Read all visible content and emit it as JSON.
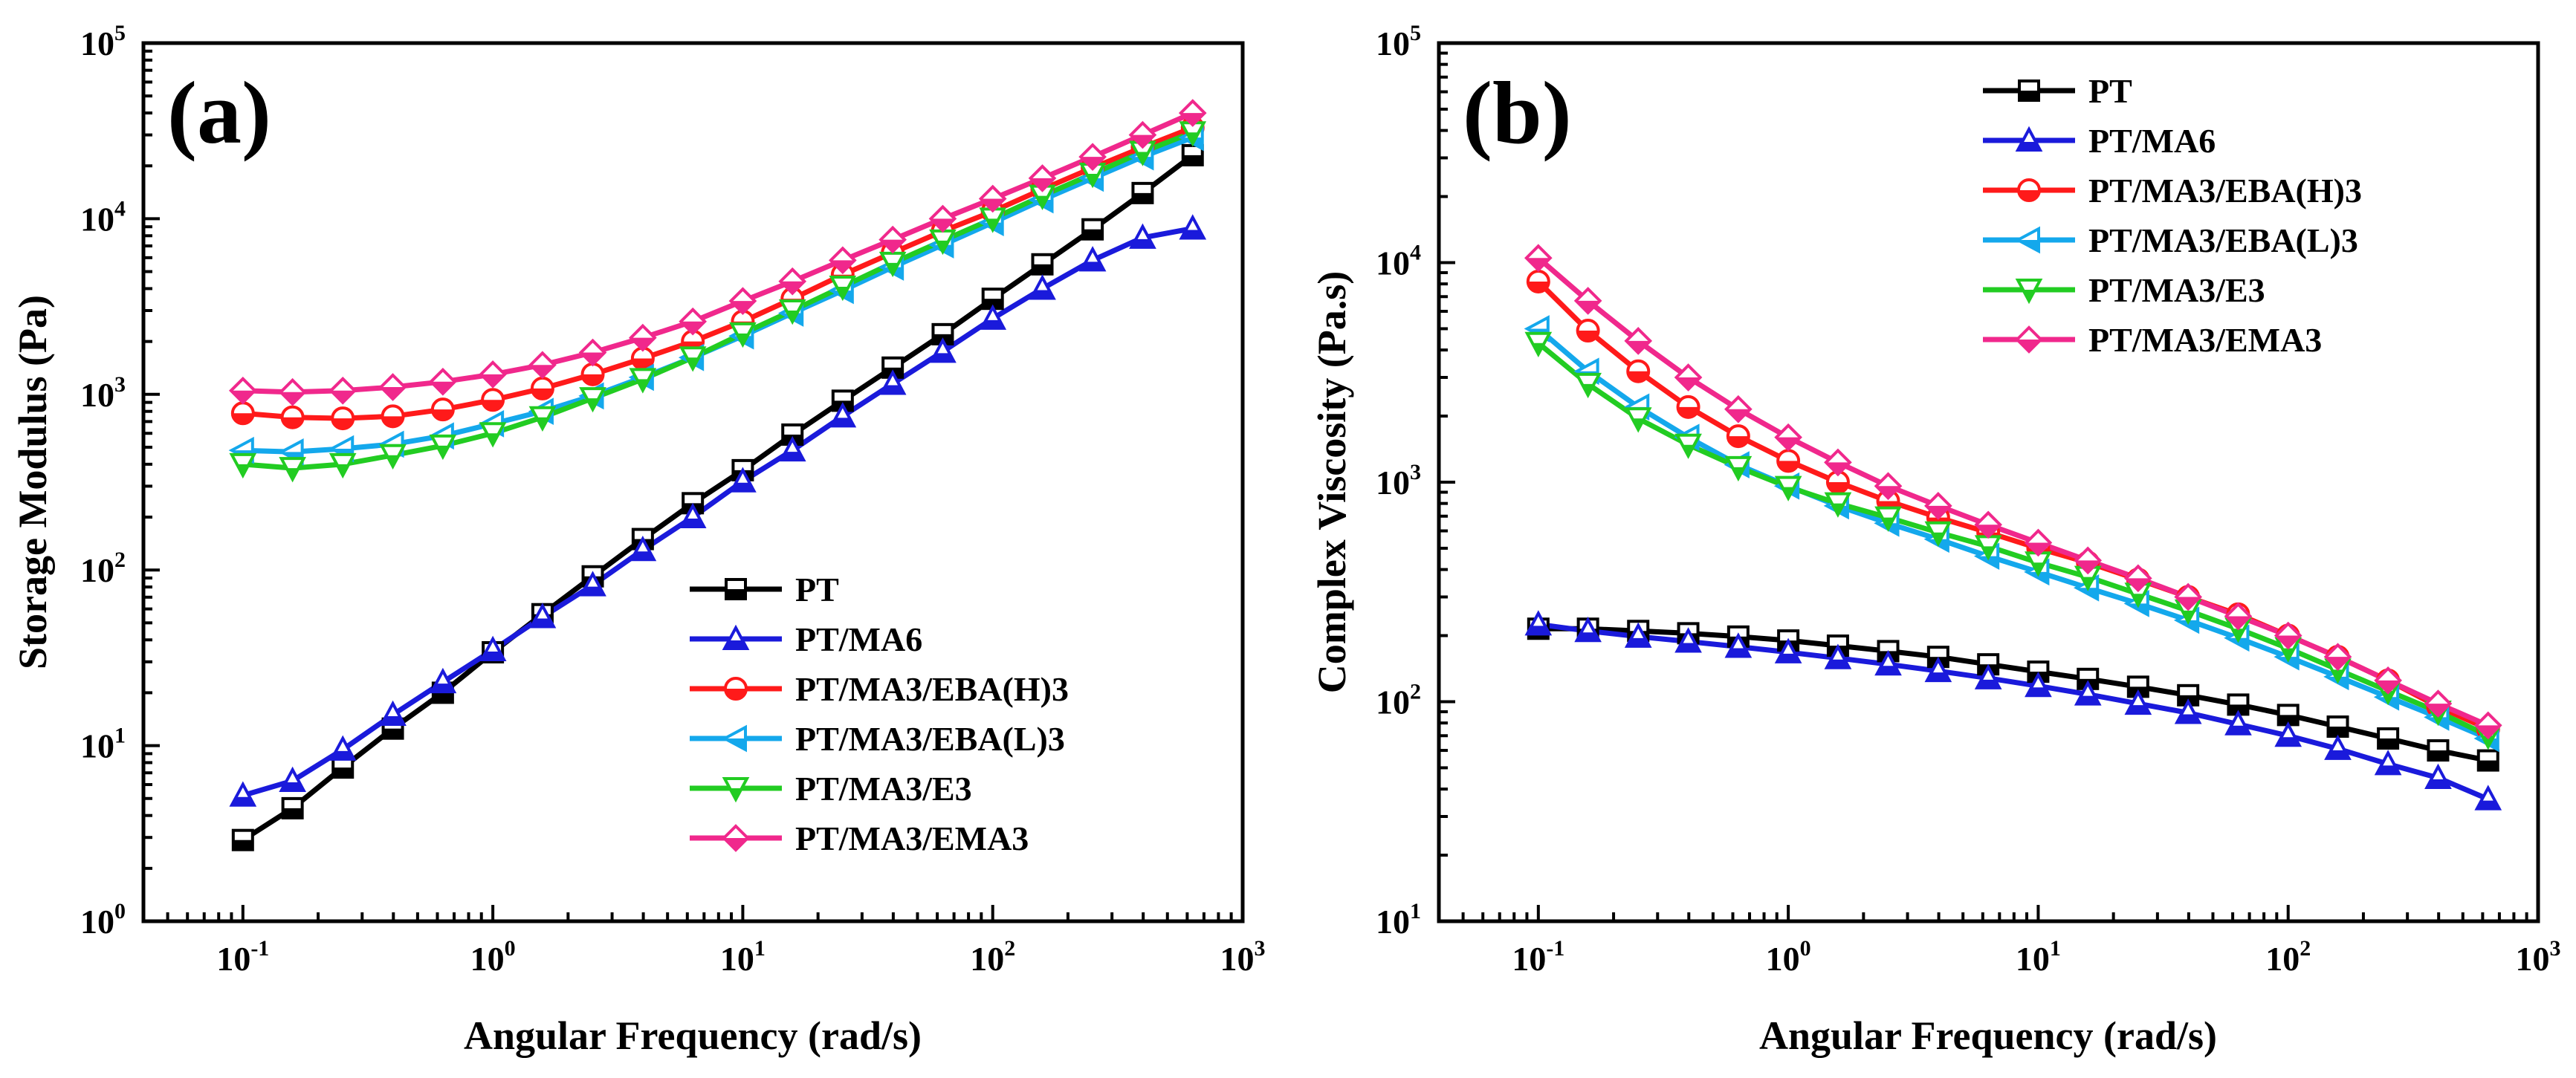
{
  "chart_data": [
    {
      "type": "line",
      "panel_label": "(a)",
      "xlabel": "Angular Frequency (rad/s)",
      "ylabel": "Storage Modulus (Pa)",
      "xscale": "log",
      "yscale": "log",
      "xlim": [
        0.04,
        1000
      ],
      "ylim": [
        1,
        100000
      ],
      "xticks": [
        {
          "base": "10",
          "exp": "-1"
        },
        {
          "base": "10",
          "exp": "0"
        },
        {
          "base": "10",
          "exp": "1"
        },
        {
          "base": "10",
          "exp": "2"
        },
        {
          "base": "10",
          "exp": "3"
        }
      ],
      "yticks": [
        {
          "base": "10",
          "exp": "0"
        },
        {
          "base": "10",
          "exp": "1"
        },
        {
          "base": "10",
          "exp": "2"
        },
        {
          "base": "10",
          "exp": "3"
        },
        {
          "base": "10",
          "exp": "4"
        },
        {
          "base": "10",
          "exp": "5"
        }
      ],
      "legend_position": "bottom-right",
      "x": [
        0.1,
        0.158,
        0.251,
        0.398,
        0.631,
        1,
        1.58,
        2.51,
        3.98,
        6.31,
        10,
        15.8,
        25.1,
        39.8,
        63.1,
        100,
        158,
        251,
        398,
        631
      ],
      "series": [
        {
          "name": "PT",
          "color": "#000000",
          "marker": "square",
          "values": [
            2.9,
            4.4,
            7.5,
            12.5,
            20,
            34,
            56,
            92,
            150,
            240,
            370,
            590,
            920,
            1420,
            2200,
            3500,
            5500,
            8700,
            14000,
            23000
          ]
        },
        {
          "name": "PT/MA6",
          "color": "#1a1adb",
          "marker": "triangle-up",
          "values": [
            5.2,
            6.3,
            9.5,
            15,
            23,
            35,
            54,
            82,
            130,
            200,
            320,
            480,
            750,
            1150,
            1750,
            2700,
            4000,
            5800,
            7800,
            8800
          ]
        },
        {
          "name": "PT/MA3/EBA(H)3",
          "color": "#ff1a1a",
          "marker": "circle",
          "values": [
            780,
            740,
            730,
            750,
            820,
            930,
            1080,
            1300,
            1600,
            2000,
            2600,
            3500,
            4800,
            6400,
            8500,
            11000,
            14700,
            19500,
            25500,
            33000
          ]
        },
        {
          "name": "PT/MA3/EBA(L)3",
          "color": "#14a8ec",
          "marker": "triangle-left",
          "values": [
            480,
            470,
            490,
            520,
            580,
            680,
            800,
            980,
            1250,
            1620,
            2150,
            2900,
            3900,
            5300,
            7100,
            9500,
            12800,
            17000,
            22500,
            29000
          ]
        },
        {
          "name": "PT/MA3/E3",
          "color": "#22cc22",
          "marker": "triangle-down",
          "values": [
            400,
            380,
            400,
            450,
            510,
            600,
            740,
            950,
            1220,
            1620,
            2220,
            3000,
            4100,
            5600,
            7500,
            10000,
            13500,
            18000,
            24000,
            31000
          ]
        },
        {
          "name": "PT/MA3/EMA3",
          "color": "#f0288c",
          "marker": "diamond",
          "values": [
            1050,
            1030,
            1050,
            1100,
            1180,
            1300,
            1470,
            1730,
            2100,
            2600,
            3400,
            4400,
            5800,
            7600,
            10000,
            13000,
            17000,
            22500,
            30000,
            40000
          ]
        }
      ]
    },
    {
      "type": "line",
      "panel_label": "(b)",
      "xlabel": "Angular Frequency (rad/s)",
      "ylabel": "Complex Viscosity (Pa.s)",
      "xscale": "log",
      "yscale": "log",
      "xlim": [
        0.04,
        1000
      ],
      "ylim": [
        10,
        100000
      ],
      "xticks": [
        {
          "base": "10",
          "exp": "-1"
        },
        {
          "base": "10",
          "exp": "0"
        },
        {
          "base": "10",
          "exp": "1"
        },
        {
          "base": "10",
          "exp": "2"
        },
        {
          "base": "10",
          "exp": "3"
        }
      ],
      "yticks": [
        {
          "base": "10",
          "exp": "1"
        },
        {
          "base": "10",
          "exp": "2"
        },
        {
          "base": "10",
          "exp": "3"
        },
        {
          "base": "10",
          "exp": "4"
        },
        {
          "base": "10",
          "exp": "5"
        }
      ],
      "legend_position": "top-right",
      "x": [
        0.1,
        0.158,
        0.251,
        0.398,
        0.631,
        1,
        1.58,
        2.51,
        3.98,
        6.31,
        10,
        15.8,
        25.1,
        39.8,
        63.1,
        100,
        158,
        251,
        398,
        631
      ],
      "series": [
        {
          "name": "PT",
          "color": "#000000",
          "marker": "square",
          "values": [
            215,
            215,
            210,
            205,
            198,
            190,
            180,
            170,
            160,
            148,
            137,
            127,
            117,
            107,
            97,
            87,
            77,
            68,
            60,
            54
          ]
        },
        {
          "name": "PT/MA6",
          "color": "#1a1adb",
          "marker": "triangle-up",
          "values": [
            225,
            210,
            198,
            188,
            178,
            168,
            158,
            148,
            138,
            128,
            118,
            108,
            98,
            89,
            79,
            70,
            61,
            52,
            45,
            36
          ]
        },
        {
          "name": "PT/MA3/EBA(H)3",
          "color": "#ff1a1a",
          "marker": "circle",
          "values": [
            8200,
            4900,
            3200,
            2200,
            1620,
            1250,
            1000,
            820,
            690,
            590,
            500,
            430,
            360,
            300,
            250,
            200,
            160,
            125,
            95,
            75
          ]
        },
        {
          "name": "PT/MA3/EBA(L)3",
          "color": "#14a8ec",
          "marker": "triangle-left",
          "values": [
            5000,
            3200,
            2200,
            1600,
            1200,
            960,
            780,
            650,
            550,
            460,
            390,
            330,
            280,
            235,
            195,
            160,
            130,
            105,
            85,
            68
          ]
        },
        {
          "name": "PT/MA3/E3",
          "color": "#22cc22",
          "marker": "triangle-down",
          "values": [
            4300,
            2800,
            1950,
            1480,
            1170,
            950,
            800,
            690,
            590,
            510,
            430,
            370,
            310,
            260,
            215,
            175,
            140,
            112,
            90,
            70
          ]
        },
        {
          "name": "PT/MA3/EMA3",
          "color": "#f0288c",
          "marker": "diamond",
          "values": [
            10500,
            6700,
            4400,
            3000,
            2150,
            1600,
            1230,
            960,
            780,
            640,
            530,
            440,
            365,
            300,
            245,
            200,
            160,
            125,
            98,
            78
          ]
        }
      ]
    }
  ]
}
